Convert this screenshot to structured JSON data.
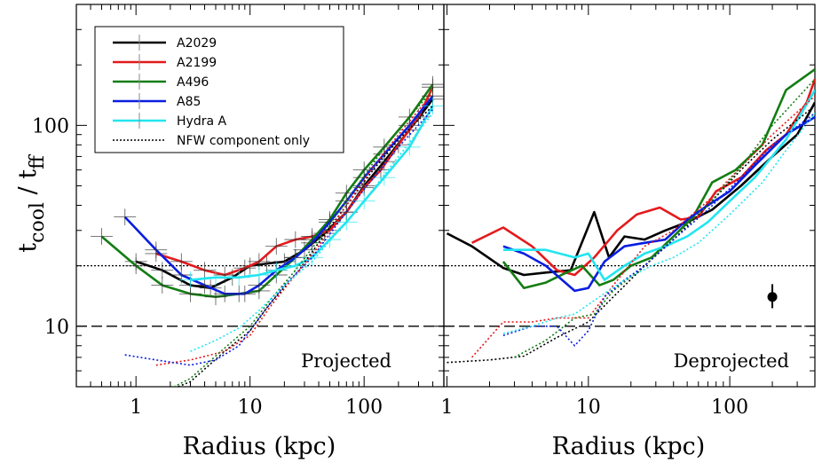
{
  "chart_data": {
    "type": "line",
    "ylabel": "t_cool / t_ff",
    "y_scale": "log",
    "x_scale": "log",
    "ylim": [
      5,
      400
    ],
    "reference_lines": [
      10,
      20
    ],
    "legend": {
      "placement": "top-left of left panel",
      "entries": [
        {
          "label": "A2029",
          "color": "#000000",
          "style": "solid"
        },
        {
          "label": "A2199",
          "color": "#e41a1c",
          "style": "solid"
        },
        {
          "label": "A496",
          "color": "#137d13",
          "style": "solid"
        },
        {
          "label": "A85",
          "color": "#0a1ee0",
          "style": "solid"
        },
        {
          "label": "Hydra A",
          "color": "#22e5f0",
          "style": "solid"
        },
        {
          "label": "NFW component only",
          "color": "#000000",
          "style": "dotted"
        }
      ]
    },
    "panels": [
      {
        "id": "projected",
        "label": "Projected",
        "xlabel": "Radius (kpc)",
        "xlim": [
          0.3,
          500
        ],
        "xticks": [
          1,
          10,
          100
        ],
        "tick_labels": [
          "1",
          "10",
          "100"
        ],
        "series": [
          {
            "name": "A2029",
            "color": "#000000",
            "errorbars": true,
            "x": [
              1.0,
              1.7,
              3.0,
              4.5,
              7.0,
              10,
              14,
              20,
              30,
              45,
              70,
              100,
              150,
              250,
              400
            ],
            "y": [
              21,
              19,
              16,
              15.5,
              17.5,
              20,
              20.5,
              21,
              24,
              29,
              37,
              50,
              66,
              95,
              135
            ]
          },
          {
            "name": "A2199",
            "color": "#e41a1c",
            "errorbars": true,
            "x": [
              1.5,
              2.5,
              4,
              6,
              9,
              12,
              17,
              25,
              35,
              50,
              70,
              100,
              140,
              200,
              300,
              400
            ],
            "y": [
              23,
              21,
              19,
              18,
              19.5,
              21,
              25,
              27,
              28,
              30,
              37,
              49,
              60,
              80,
              110,
              155
            ]
          },
          {
            "name": "A496",
            "color": "#137d13",
            "errorbars": true,
            "x": [
              0.5,
              1.0,
              1.7,
              3.0,
              5,
              8,
              12,
              17,
              25,
              35,
              50,
              70,
              100,
              150,
              250,
              400
            ],
            "y": [
              28,
              20,
              16,
              14.5,
              14,
              14.5,
              15,
              18,
              22,
              27,
              34,
              46,
              60,
              78,
              110,
              160
            ]
          },
          {
            "name": "A85",
            "color": "#0a1ee0",
            "errorbars": true,
            "x": [
              0.8,
              1.5,
              2.5,
              4,
              6,
              9,
              12,
              17,
              25,
              35,
              50,
              70,
              100,
              150,
              250,
              400
            ],
            "y": [
              35,
              24,
              18,
              16,
              14.5,
              14.5,
              16,
              19,
              22,
              26,
              33,
              42,
              55,
              72,
              100,
              140
            ]
          },
          {
            "name": "Hydra A",
            "color": "#22e5f0",
            "errorbars": true,
            "x": [
              3,
              5,
              8,
              12,
              17,
              25,
              35,
              50,
              70,
              100,
              150,
              250,
              400
            ],
            "y": [
              17,
              17.5,
              17.5,
              18,
              19,
              20,
              22,
              27,
              33,
              42,
              55,
              78,
              125
            ]
          },
          {
            "name": "A2029 NFW",
            "color": "#000000",
            "dotted": true,
            "x": [
              1.5,
              3,
              6,
              10,
              15,
              25,
              40,
              70,
              120,
              200,
              400
            ],
            "y": [
              4.5,
              5.3,
              7.5,
              9.5,
              13,
              18,
              26,
              40,
              60,
              85,
              125
            ]
          },
          {
            "name": "A2199 NFW",
            "color": "#e41a1c",
            "dotted": true,
            "x": [
              1.5,
              3,
              6,
              10,
              15,
              25,
              40,
              70,
              120,
              200,
              400
            ],
            "y": [
              6.4,
              6.8,
              7.5,
              9,
              12.5,
              18,
              25,
              40,
              62,
              90,
              145
            ]
          },
          {
            "name": "A496 NFW",
            "color": "#137d13",
            "dotted": true,
            "x": [
              1.5,
              3,
              6,
              10,
              15,
              25,
              40,
              70,
              120,
              200,
              400
            ],
            "y": [
              4.5,
              5.5,
              7.8,
              10,
              13.5,
              19,
              27,
              42,
              65,
              95,
              150
            ]
          },
          {
            "name": "A85 NFW",
            "color": "#0a1ee0",
            "dotted": true,
            "x": [
              0.8,
              1.5,
              3,
              5,
              8,
              12,
              20,
              35,
              60,
              100,
              200,
              400
            ],
            "y": [
              7.2,
              6.8,
              6.4,
              6.8,
              8,
              11,
              16,
              22,
              33,
              48,
              78,
              120
            ]
          },
          {
            "name": "Hydra A NFW",
            "color": "#22e5f0",
            "dotted": true,
            "x": [
              3,
              5,
              8,
              12,
              20,
              35,
              60,
              100,
              200,
              400
            ],
            "y": [
              7.5,
              8.5,
              9.8,
              12,
              16,
              21,
              30,
              42,
              70,
              115
            ]
          }
        ]
      },
      {
        "id": "deprojected",
        "label": "Deprojected",
        "xlabel": "Radius (kpc)",
        "xlim": [
          0.95,
          400
        ],
        "xticks": [
          1,
          10,
          100
        ],
        "tick_labels": [
          "1",
          "10",
          "100"
        ],
        "series": [
          {
            "name": "A2029",
            "color": "#000000",
            "x": [
              1.0,
              1.5,
              2.5,
              3.5,
              5,
              7.5,
              11,
              14,
              18,
              25,
              35,
              50,
              75,
              120,
              200,
              300,
              400
            ],
            "y": [
              29,
              25,
              19.5,
              18,
              18.5,
              19,
              37,
              22,
              28,
              27,
              30,
              33,
              38,
              50,
              70,
              90,
              130
            ]
          },
          {
            "name": "A2199",
            "color": "#e41a1c",
            "x": [
              1.5,
              2.5,
              4,
              6,
              8,
              11,
              16,
              22,
              32,
              45,
              60,
              80,
              120,
              180,
              250,
              350,
              400
            ],
            "y": [
              26,
              31,
              25,
              19,
              18,
              22,
              30,
              36,
              39,
              34,
              35,
              47,
              55,
              75,
              90,
              130,
              170
            ]
          },
          {
            "name": "A496",
            "color": "#137d13",
            "x": [
              2.5,
              3.5,
              5,
              7,
              9,
              12,
              15,
              20,
              28,
              40,
              55,
              75,
              110,
              170,
              250,
              400
            ],
            "y": [
              21,
              15.5,
              16.5,
              18.5,
              20,
              16,
              17,
              20,
              22,
              28,
              35,
              52,
              60,
              80,
              150,
              190
            ]
          },
          {
            "name": "A85",
            "color": "#0a1ee0",
            "x": [
              2.5,
              3.5,
              5,
              8,
              10,
              13,
              18,
              25,
              35,
              50,
              70,
              100,
              150,
              250,
              400
            ],
            "y": [
              25,
              23,
              20,
              15,
              15.5,
              21,
              25,
              26,
              27,
              34,
              40,
              47,
              63,
              90,
              110
            ]
          },
          {
            "name": "Hydra A",
            "color": "#22e5f0",
            "x": [
              2.5,
              3.5,
              5,
              8,
              10,
              13,
              18,
              25,
              35,
              50,
              70,
              100,
              150,
              250,
              400
            ],
            "y": [
              24,
              24,
              24,
              22,
              23,
              17,
              20,
              23,
              25,
              28,
              33,
              42,
              55,
              85,
              150
            ]
          },
          {
            "name": "A2029 NFW",
            "color": "#000000",
            "dotted": true,
            "x": [
              1.0,
              2,
              3.5,
              6,
              10,
              15,
              25,
              40,
              70,
              120,
              200,
              400
            ],
            "y": [
              6.6,
              6.8,
              7.1,
              8.8,
              10.5,
              14,
              20,
              27,
              40,
              60,
              85,
              125
            ]
          },
          {
            "name": "A2199 NFW",
            "color": "#e41a1c",
            "dotted": true,
            "x": [
              1.5,
              2.5,
              4,
              6,
              10,
              15,
              25,
              40,
              70,
              120,
              200,
              400
            ],
            "y": [
              7,
              10.5,
              10.5,
              11,
              11,
              16,
              25,
              30,
              42,
              62,
              90,
              140
            ]
          },
          {
            "name": "A496 NFW",
            "color": "#137d13",
            "dotted": true,
            "x": [
              3,
              5,
              8,
              11,
              15,
              25,
              40,
              70,
              120,
              200,
              400
            ],
            "y": [
              7,
              8.5,
              11,
              11.5,
              15,
              20,
              28,
              40,
              62,
              100,
              170
            ]
          },
          {
            "name": "A85 NFW",
            "color": "#0a1ee0",
            "dotted": true,
            "x": [
              2.5,
              4,
              6,
              8,
              10,
              13,
              18,
              25,
              40,
              70,
              120,
              200,
              400
            ],
            "y": [
              9,
              10,
              10,
              8,
              9.5,
              14,
              17,
              20,
              27,
              38,
              55,
              80,
              115
            ]
          },
          {
            "name": "Hydra A NFW",
            "color": "#22e5f0",
            "dotted": true,
            "x": [
              2.5,
              4,
              6,
              8,
              12,
              18,
              28,
              40,
              60,
              100,
              170,
              250,
              400
            ],
            "y": [
              9.2,
              10,
              11,
              11.5,
              14,
              17,
              20,
              22,
              26,
              36,
              52,
              75,
              115
            ]
          }
        ],
        "marker_point": {
          "x": 200,
          "y": 14,
          "y_err": [
            12.3,
            16.2
          ]
        }
      }
    ]
  }
}
